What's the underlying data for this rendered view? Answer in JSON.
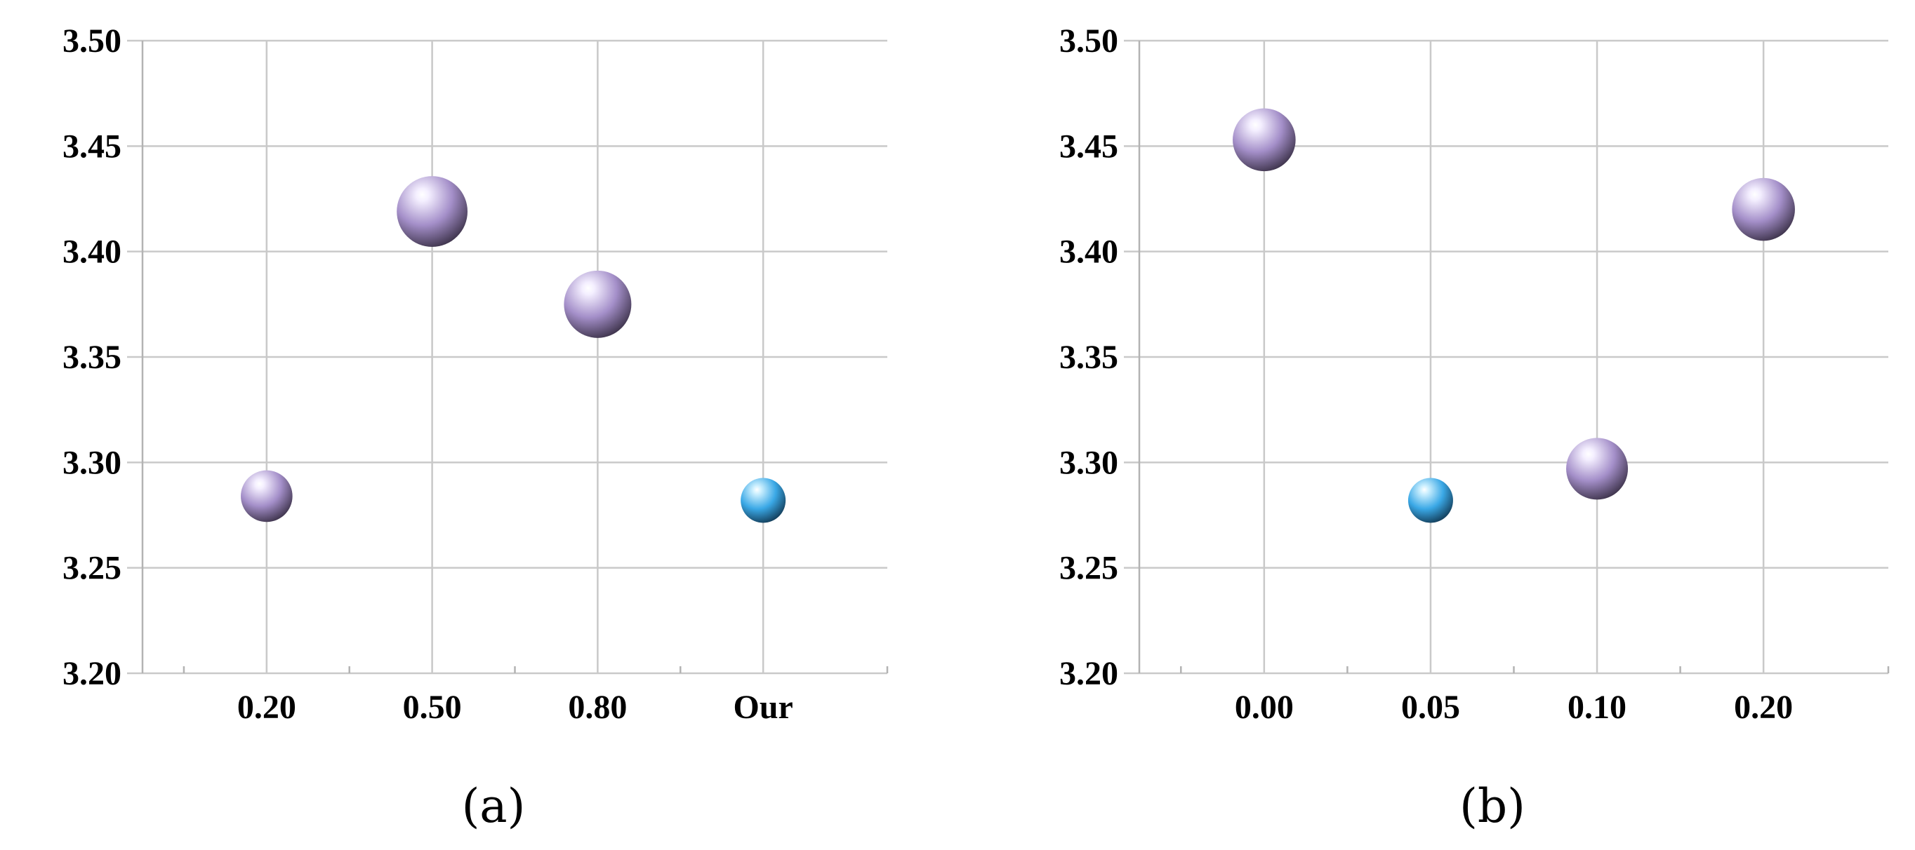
{
  "colors": {
    "sphere_default": "#a48fc9",
    "sphere_highlight": "#3aa8e6",
    "grid": "#c9c9c9",
    "axis": "#b3b3b3"
  },
  "chart_data": [
    {
      "type": "bubble",
      "caption": "(a)",
      "categories": [
        "0.20",
        "0.50",
        "0.80",
        "Our"
      ],
      "y_ticks": [
        "3.20",
        "3.25",
        "3.30",
        "3.35",
        "3.40",
        "3.45",
        "3.50"
      ],
      "ylim": [
        3.2,
        3.5
      ],
      "grid": true,
      "points": [
        {
          "category": "0.20",
          "y": 3.284,
          "size": 0.46,
          "color": "#a48fc9"
        },
        {
          "category": "0.50",
          "y": 3.419,
          "size": 0.63,
          "color": "#a48fc9"
        },
        {
          "category": "0.80",
          "y": 3.375,
          "size": 0.6,
          "color": "#a48fc9"
        },
        {
          "category": "Our",
          "y": 3.282,
          "size": 0.4,
          "color": "#3aa8e6"
        }
      ]
    },
    {
      "type": "bubble",
      "caption": "(b)",
      "categories": [
        "0.00",
        "0.05",
        "0.10",
        "0.20"
      ],
      "y_ticks": [
        "3.20",
        "3.25",
        "3.30",
        "3.35",
        "3.40",
        "3.45",
        "3.50"
      ],
      "ylim": [
        3.2,
        3.5
      ],
      "grid": true,
      "points": [
        {
          "category": "0.00",
          "y": 3.453,
          "size": 0.56,
          "color": "#a48fc9"
        },
        {
          "category": "0.05",
          "y": 3.282,
          "size": 0.4,
          "color": "#3aa8e6"
        },
        {
          "category": "0.10",
          "y": 3.297,
          "size": 0.55,
          "color": "#a48fc9"
        },
        {
          "category": "0.20",
          "y": 3.42,
          "size": 0.56,
          "color": "#a48fc9"
        }
      ]
    }
  ]
}
